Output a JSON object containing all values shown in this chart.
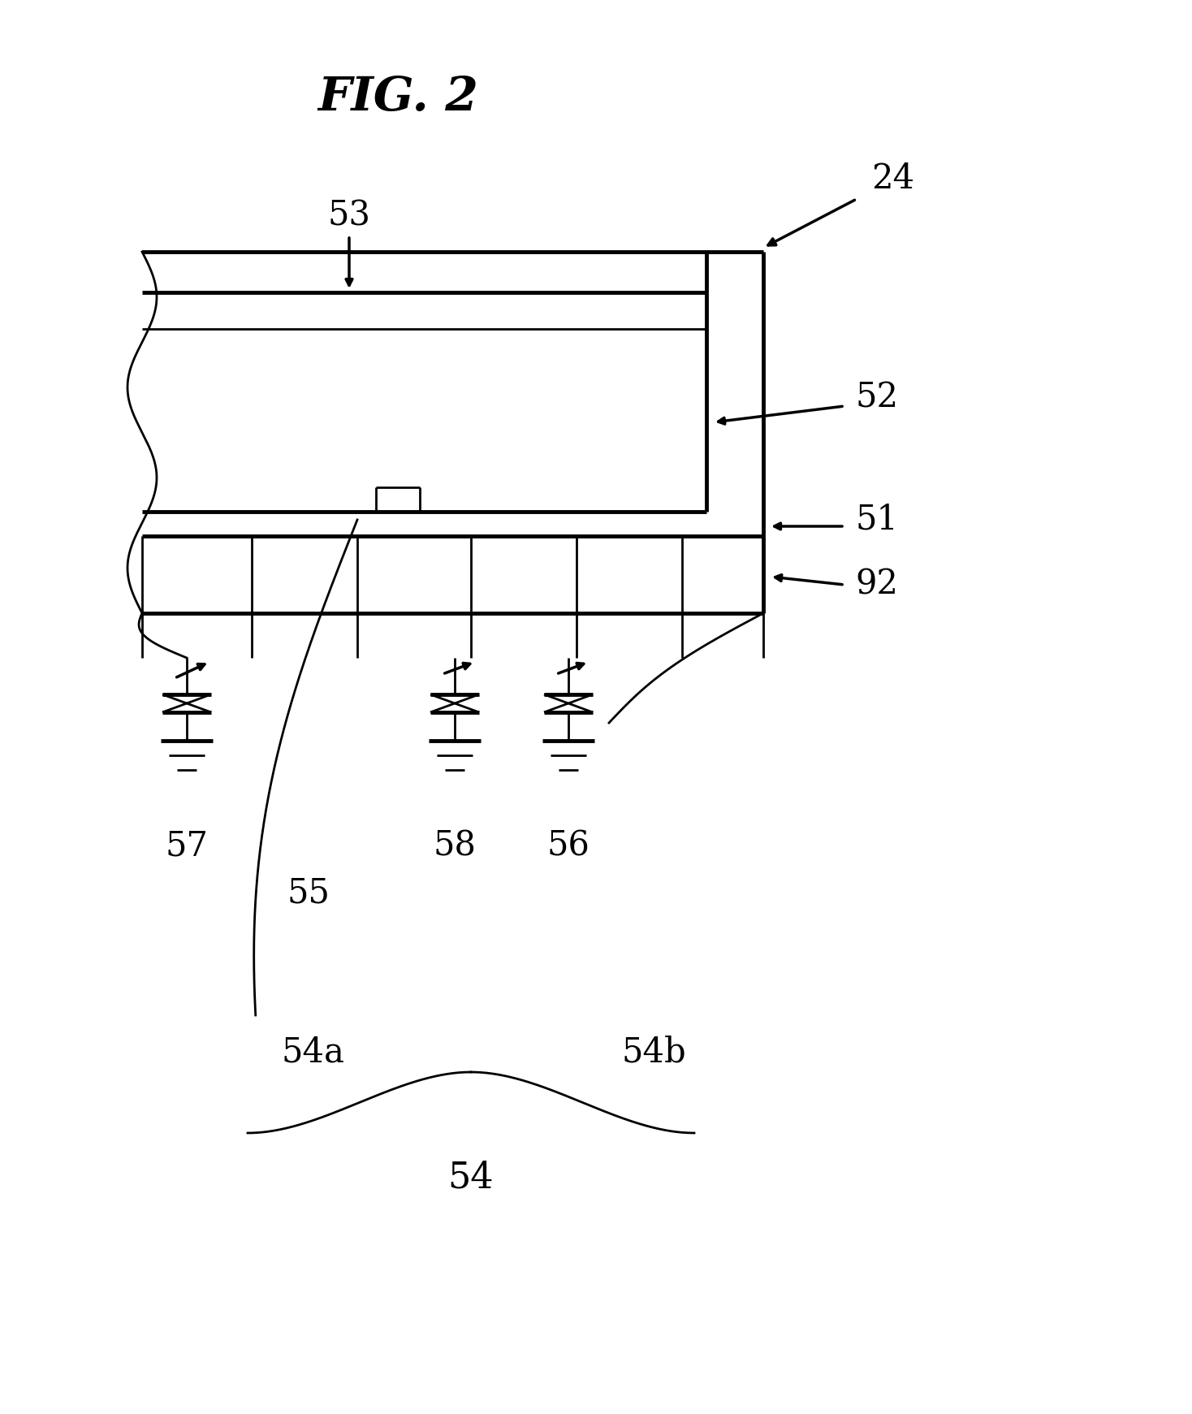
{
  "title": "FIG. 2",
  "bg_color": "#ffffff",
  "fig_width": 14.68,
  "fig_height": 17.41,
  "labels": {
    "fig_title": "FIG. 2",
    "label_24": "24",
    "label_53": "53",
    "label_52": "52",
    "label_51": "51",
    "label_92": "92",
    "label_55": "55",
    "label_57": "57",
    "label_58": "58",
    "label_56": "56",
    "label_54a": "54a",
    "label_54b": "54b",
    "label_54": "54"
  },
  "line_color": "#000000",
  "lw": 2.0,
  "lw_thick": 3.5
}
